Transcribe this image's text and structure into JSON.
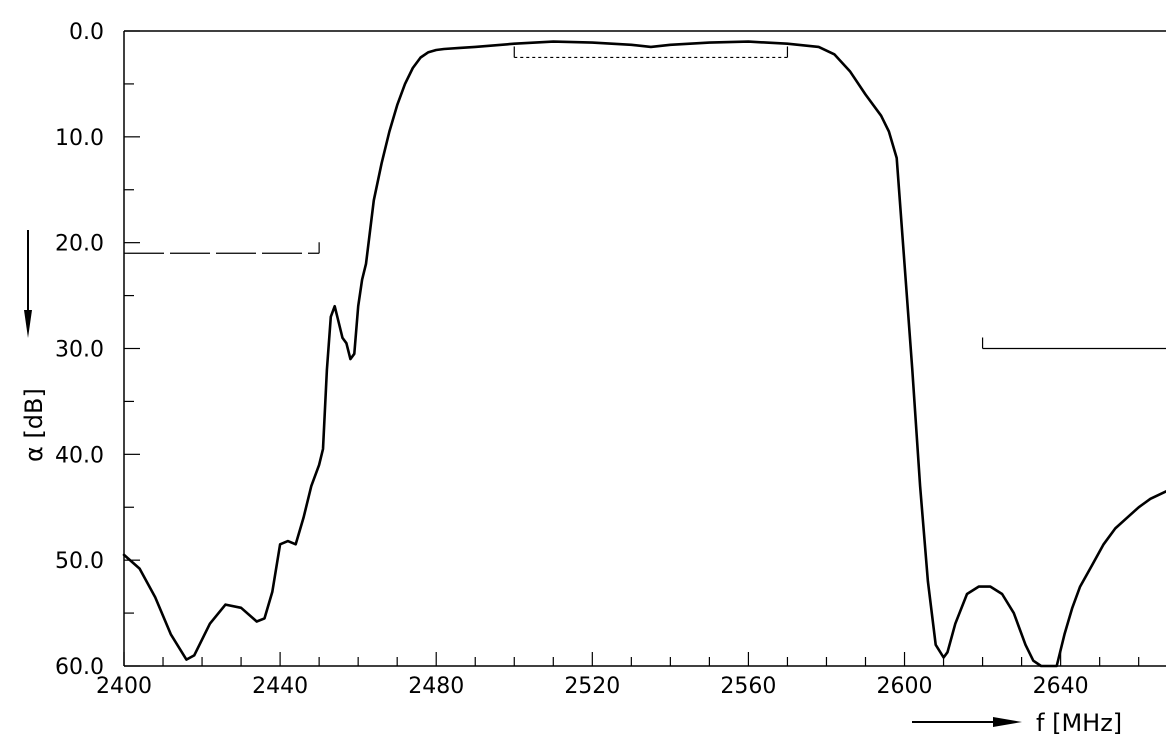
{
  "chart_data": {
    "type": "line",
    "title": "",
    "xlabel": "f [MHz]",
    "ylabel": "α [dB]",
    "xlim": [
      2400,
      2667
    ],
    "ylim": [
      0,
      60
    ],
    "y_inverted": true,
    "x_tick_labels": [
      "2400",
      "2440",
      "2480",
      "2520",
      "2560",
      "2600",
      "2640"
    ],
    "x_tick_values": [
      2400,
      2440,
      2480,
      2520,
      2560,
      2600,
      2640
    ],
    "x_minor_step": 10,
    "y_tick_labels": [
      "0.0",
      "10.0",
      "20.0",
      "30.0",
      "40.0",
      "50.0",
      "60.0"
    ],
    "y_tick_values": [
      0,
      10,
      20,
      30,
      40,
      50,
      60
    ],
    "y_minor_step": 5,
    "grid": false,
    "legend": "none",
    "series": [
      {
        "x": [
          2400,
          2404,
          2408,
          2412,
          2416,
          2418,
          2422,
          2426,
          2430,
          2434,
          2436,
          2438,
          2440,
          2442,
          2444,
          2446,
          2448,
          2450,
          2451,
          2452,
          2453,
          2454,
          2455,
          2456,
          2457,
          2458,
          2459,
          2460,
          2461,
          2462,
          2464,
          2466,
          2468,
          2470,
          2472,
          2474,
          2476,
          2478,
          2480,
          2482,
          2486,
          2490,
          2500,
          2510,
          2520,
          2530,
          2535,
          2540,
          2550,
          2560,
          2570,
          2578,
          2582,
          2586,
          2590,
          2594,
          2596,
          2598,
          2600,
          2602,
          2604,
          2606,
          2608,
          2610,
          2611,
          2613,
          2616,
          2619,
          2622,
          2625,
          2628,
          2631,
          2633,
          2635,
          2636,
          2637,
          2639,
          2641,
          2643,
          2645,
          2648,
          2651,
          2654,
          2657,
          2660,
          2663,
          2667
        ],
        "y": [
          49.5,
          50.8,
          53.5,
          57,
          59.4,
          59,
          56,
          54.2,
          54.5,
          55.8,
          55.5,
          53,
          48.5,
          48.2,
          48.5,
          46,
          43,
          41,
          39.5,
          32,
          27,
          26,
          27.5,
          29,
          29.5,
          31,
          30.5,
          26,
          23.5,
          22,
          16,
          12.5,
          9.5,
          7,
          5,
          3.5,
          2.5,
          2,
          1.8,
          1.7,
          1.6,
          1.5,
          1.2,
          1,
          1.1,
          1.3,
          1.5,
          1.3,
          1.1,
          1,
          1.2,
          1.5,
          2.2,
          3.8,
          6,
          8,
          9.5,
          12,
          22,
          32,
          43,
          52,
          58,
          59.2,
          58.7,
          56,
          53.2,
          52.5,
          52.5,
          53.2,
          55,
          58,
          59.5,
          60,
          60,
          60,
          60,
          57,
          54.5,
          52.5,
          50.5,
          48.5,
          47,
          46,
          45,
          44.2,
          43.5
        ]
      }
    ],
    "spec_lines": [
      {
        "x": [
          2400,
          2450
        ],
        "y": 21,
        "tick_end": "right"
      },
      {
        "x": [
          2500,
          2570
        ],
        "y": 2.5,
        "tick_end": "both"
      },
      {
        "x": [
          2620,
          2667
        ],
        "y": 30,
        "tick_end": "left"
      }
    ]
  }
}
